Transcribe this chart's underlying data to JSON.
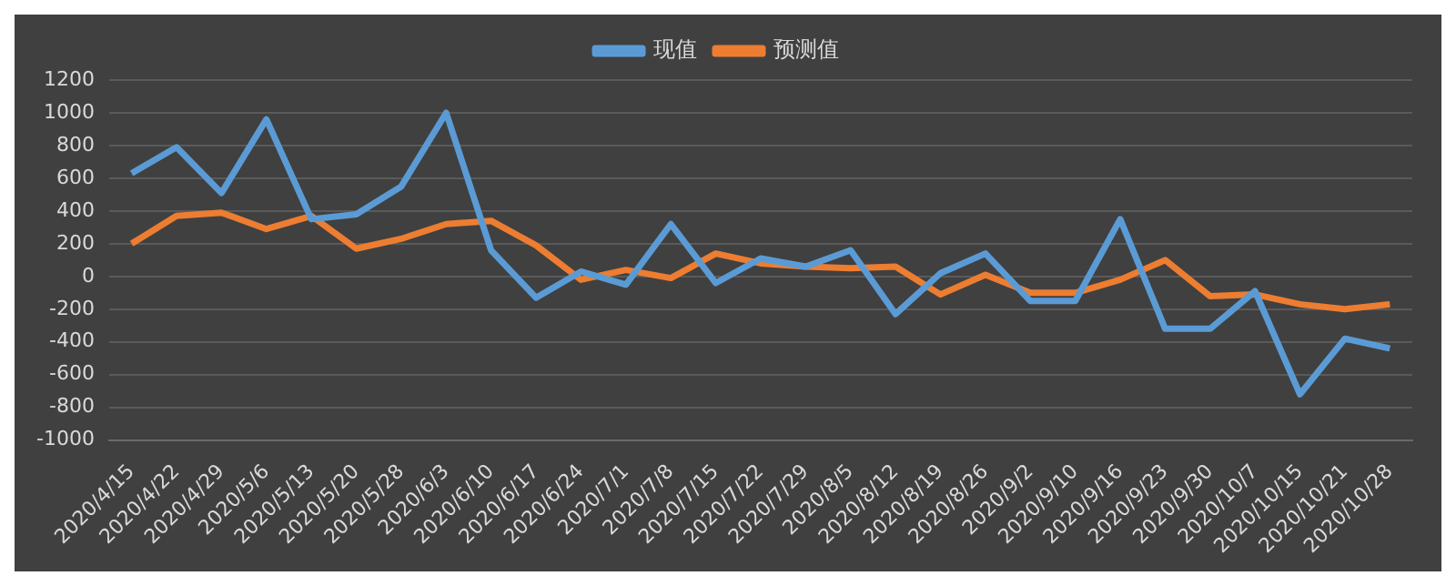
{
  "chart_data": {
    "type": "line",
    "categories": [
      "2020/4/15",
      "2020/4/22",
      "2020/4/29",
      "2020/5/6",
      "2020/5/13",
      "2020/5/20",
      "2020/5/28",
      "2020/6/3",
      "2020/6/10",
      "2020/6/17",
      "2020/6/24",
      "2020/7/1",
      "2020/7/8",
      "2020/7/15",
      "2020/7/22",
      "2020/7/29",
      "2020/8/5",
      "2020/8/12",
      "2020/8/19",
      "2020/8/26",
      "2020/9/2",
      "2020/9/10",
      "2020/9/16",
      "2020/9/23",
      "2020/9/30",
      "2020/10/7",
      "2020/10/15",
      "2020/10/21",
      "2020/10/28"
    ],
    "series": [
      {
        "name": "现值",
        "color": "#5b9bd5",
        "values": [
          630,
          790,
          510,
          960,
          350,
          380,
          550,
          1000,
          160,
          -130,
          30,
          -50,
          320,
          -40,
          110,
          60,
          160,
          -230,
          20,
          140,
          -150,
          -150,
          350,
          -320,
          -320,
          -90,
          -720,
          -380,
          -440
        ]
      },
      {
        "name": "预测值",
        "color": "#ed7d31",
        "values": [
          200,
          370,
          390,
          290,
          370,
          170,
          230,
          320,
          340,
          190,
          -20,
          40,
          -10,
          140,
          80,
          60,
          50,
          60,
          -110,
          10,
          -100,
          -100,
          -20,
          100,
          -120,
          -110,
          -170,
          -200,
          -170
        ]
      }
    ],
    "ylim": [
      -1000,
      1200
    ],
    "yticks": [
      -1000,
      -800,
      -600,
      -400,
      -200,
      0,
      200,
      400,
      600,
      800,
      1000,
      1200
    ],
    "grid": "y",
    "legend": "top",
    "marker": "none",
    "line_style": "solid"
  }
}
